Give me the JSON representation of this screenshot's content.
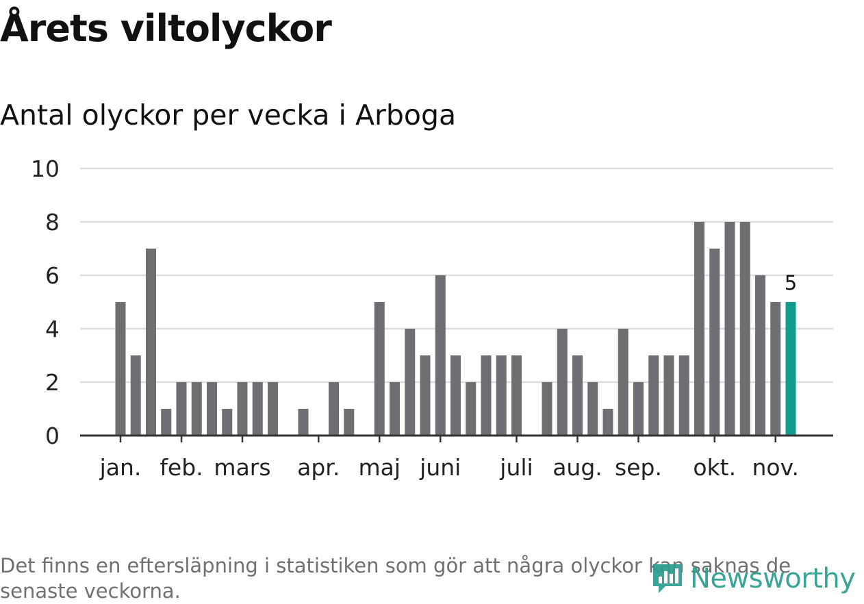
{
  "header": {
    "title": "Årets viltolyckor",
    "subtitle": "Antal olyckor per vecka i Arboga"
  },
  "footnote": "Det finns en eftersläpning i statistiken som gör att några olyckor kan saknas de senaste veckorna.",
  "logo": {
    "text": "Newsworthy",
    "icon": "bar-chart-speech-bubble-icon"
  },
  "colors": {
    "bar": "#6f6e73",
    "highlight": "#119e8f",
    "grid": "#dcdcdc",
    "axis": "#333333",
    "logo": "#2a9d8f"
  },
  "chart_data": {
    "type": "bar",
    "title": "Antal olyckor per vecka i Arboga",
    "xlabel": "",
    "ylabel": "",
    "ylim": [
      0,
      10
    ],
    "y_ticks": [
      0,
      2,
      4,
      6,
      8,
      10
    ],
    "grid": true,
    "weeks": [
      1,
      2,
      3,
      4,
      5,
      6,
      7,
      8,
      9,
      10,
      11,
      12,
      13,
      14,
      15,
      16,
      17,
      18,
      19,
      20,
      21,
      22,
      23,
      24,
      25,
      26,
      27,
      28,
      29,
      30,
      31,
      32,
      33,
      34,
      35,
      36,
      37,
      38,
      39,
      40,
      41,
      42,
      43,
      44,
      45,
      46
    ],
    "values": [
      5,
      3,
      7,
      1,
      2,
      2,
      2,
      1,
      2,
      2,
      2,
      0,
      1,
      0,
      2,
      1,
      0,
      5,
      2,
      4,
      3,
      6,
      3,
      2,
      3,
      3,
      3,
      0,
      2,
      4,
      3,
      2,
      1,
      4,
      2,
      3,
      3,
      3,
      8,
      7,
      8,
      8,
      6,
      5,
      5,
      null
    ],
    "highlight_index": 44,
    "highlight_label": "5",
    "x_tick_labels": [
      {
        "label": "jan.",
        "week": 1
      },
      {
        "label": "feb.",
        "week": 5
      },
      {
        "label": "mars",
        "week": 9
      },
      {
        "label": "apr.",
        "week": 14
      },
      {
        "label": "maj",
        "week": 18
      },
      {
        "label": "juni",
        "week": 22
      },
      {
        "label": "juli",
        "week": 27
      },
      {
        "label": "aug.",
        "week": 31
      },
      {
        "label": "sep.",
        "week": 35
      },
      {
        "label": "okt.",
        "week": 40
      },
      {
        "label": "nov.",
        "week": 44
      }
    ]
  }
}
